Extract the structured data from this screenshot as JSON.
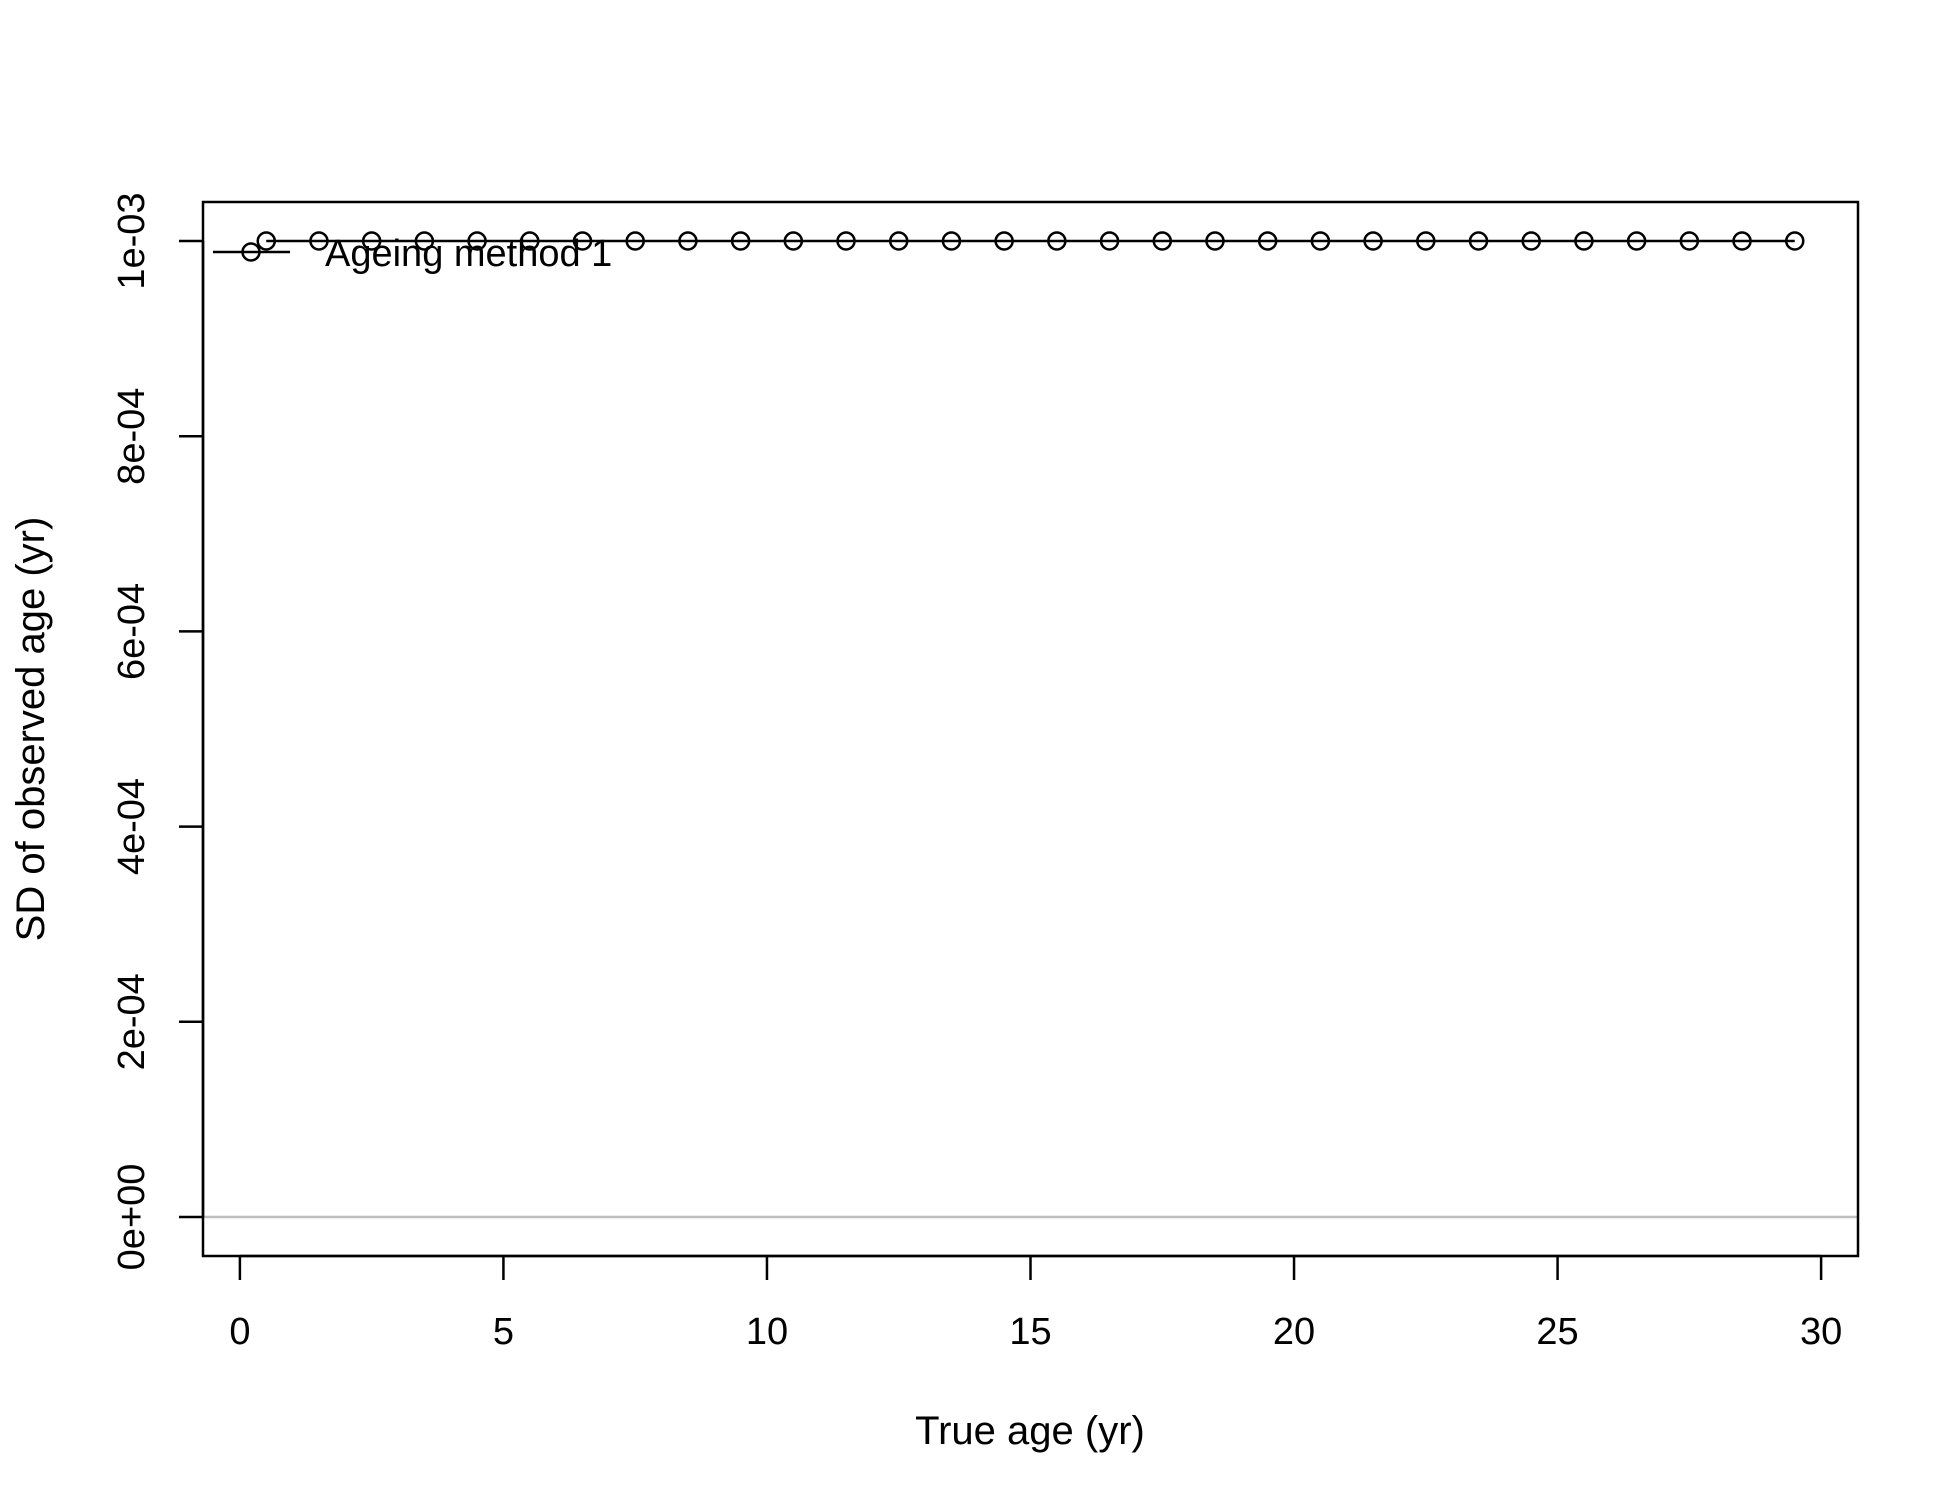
{
  "chart_data": {
    "type": "line",
    "title": "",
    "xlabel": "True age (yr)",
    "ylabel": "SD of observed age (yr)",
    "xlim": [
      -0.7,
      30.7
    ],
    "ylim": [
      -4e-05,
      0.00104
    ],
    "x_ticks": [
      0,
      5,
      10,
      15,
      20,
      25,
      30
    ],
    "x_tick_labels": [
      "0",
      "5",
      "10",
      "15",
      "20",
      "25",
      "30"
    ],
    "y_ticks": [
      0,
      0.0002,
      0.0004,
      0.0006,
      0.0008,
      0.001
    ],
    "y_tick_labels": [
      "0e+00",
      "2e-04",
      "4e-04",
      "6e-04",
      "8e-04",
      "1e-03"
    ],
    "reference_line": {
      "y": 0,
      "color": "#bebebe"
    },
    "grid": false,
    "legend": {
      "position": "top-left",
      "entries": [
        "Ageing method 1"
      ]
    },
    "series": [
      {
        "name": "Ageing method 1",
        "color": "#000000",
        "marker": "open-circle",
        "x": [
          0.5,
          1.5,
          2.5,
          3.5,
          4.5,
          5.5,
          6.5,
          7.5,
          8.5,
          9.5,
          10.5,
          11.5,
          12.5,
          13.5,
          14.5,
          15.5,
          16.5,
          17.5,
          18.5,
          19.5,
          20.5,
          21.5,
          22.5,
          23.5,
          24.5,
          25.5,
          26.5,
          27.5,
          28.5,
          29.5
        ],
        "y": [
          0.001,
          0.001,
          0.001,
          0.001,
          0.001,
          0.001,
          0.001,
          0.001,
          0.001,
          0.001,
          0.001,
          0.001,
          0.001,
          0.001,
          0.001,
          0.001,
          0.001,
          0.001,
          0.001,
          0.001,
          0.001,
          0.001,
          0.001,
          0.001,
          0.001,
          0.001,
          0.001,
          0.001,
          0.001,
          0.001
        ]
      }
    ]
  }
}
